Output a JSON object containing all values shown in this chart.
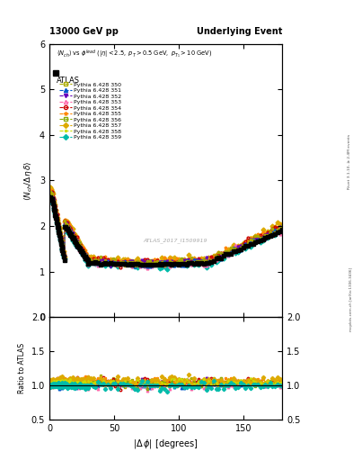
{
  "title_left": "13000 GeV pp",
  "title_right": "Underlying Event",
  "ylabel_main": "\\langle N_{ch} / \\Delta\\eta\\,\\delta\\rangle",
  "xlabel": "|\\Delta\\,\\phi| [degrees]",
  "subtitle_line1": "\\langle N_{ch}\\rangle vs \\phi^{lead} (|\\eta| < 2.5, p_T > 0.5 GeV, p_{T_1} > 10 GeV)",
  "watermark": "ATLAS_2017_I1509919",
  "rivet_text": "Rivet 3.1.10, ≥ 2.4M events",
  "mcplots_text": "mcplots.cern.ch [arXiv:1306.3436]",
  "ylim_main": [
    0,
    6
  ],
  "ylim_ratio": [
    0.5,
    2.0
  ],
  "xlim": [
    0,
    180
  ],
  "yticks_main": [
    0,
    1,
    2,
    3,
    4,
    5,
    6
  ],
  "yticks_ratio": [
    0.5,
    1.0,
    1.5,
    2.0
  ],
  "xticks": [
    0,
    50,
    100,
    150
  ],
  "series": [
    {
      "label": "ATLAS",
      "color": "#000000",
      "marker": "s",
      "filled": true
    },
    {
      "label": "Pythia 6.428 350",
      "color": "#aaaa00",
      "marker": "s",
      "filled": false
    },
    {
      "label": "Pythia 6.428 351",
      "color": "#0055cc",
      "marker": "^",
      "filled": true
    },
    {
      "label": "Pythia 6.428 352",
      "color": "#6600bb",
      "marker": "v",
      "filled": true
    },
    {
      "label": "Pythia 6.428 353",
      "color": "#ff66aa",
      "marker": "^",
      "filled": false
    },
    {
      "label": "Pythia 6.428 354",
      "color": "#cc0000",
      "marker": "o",
      "filled": false
    },
    {
      "label": "Pythia 6.428 355",
      "color": "#ff8800",
      "marker": "*",
      "filled": true
    },
    {
      "label": "Pythia 6.428 356",
      "color": "#88aa00",
      "marker": "s",
      "filled": false
    },
    {
      "label": "Pythia 6.428 357",
      "color": "#ddaa00",
      "marker": "D",
      "filled": true
    },
    {
      "label": "Pythia 6.428 358",
      "color": "#ccdd00",
      "marker": ".",
      "filled": true
    },
    {
      "label": "Pythia 6.428 359",
      "color": "#00bbaa",
      "marker": "D",
      "filled": true
    }
  ]
}
